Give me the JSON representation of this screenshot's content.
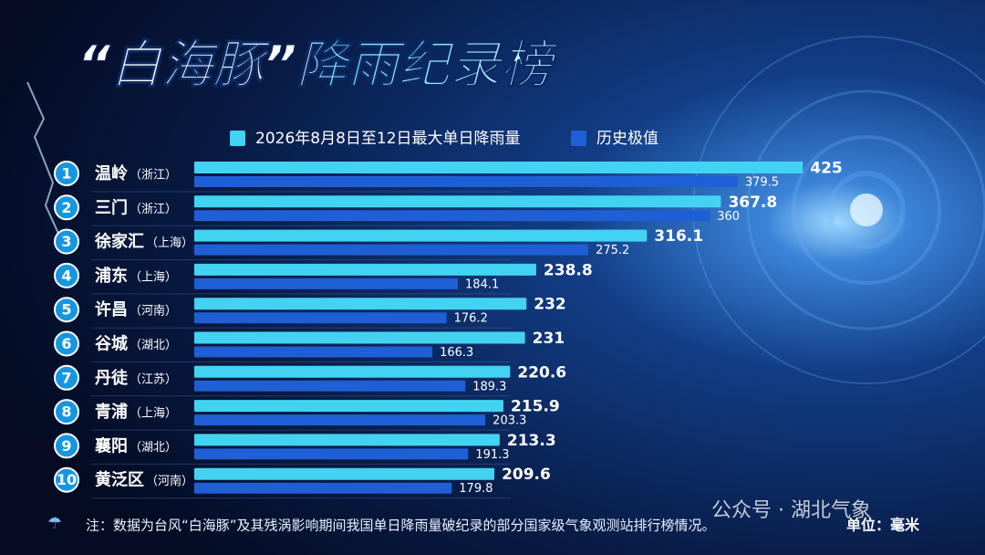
{
  "chart_data": {
    "type": "bar",
    "orientation": "horizontal",
    "title": "“白海豚”降雨纪录榜",
    "ranks": [
      1,
      2,
      3,
      4,
      5,
      6,
      7,
      8,
      9,
      10
    ],
    "categories": [
      "温岭",
      "三门",
      "徐家汇",
      "浦东",
      "许昌",
      "谷城",
      "丹徒",
      "青浦",
      "襄阳",
      "黄泛区"
    ],
    "provinces": [
      "（浙江）",
      "（浙江）",
      "（上海）",
      "（上海）",
      "（河南）",
      "（湖北）",
      "（江苏）",
      "（上海）",
      "（湖北）",
      "（河南）"
    ],
    "series": [
      {
        "name": "2026年8月8日至12日最大单日降雨量",
        "color": "#43d3f2",
        "values": [
          425,
          367.8,
          316.1,
          238.8,
          232,
          231,
          220.6,
          215.9,
          213.3,
          209.6
        ]
      },
      {
        "name": "历史极值",
        "color": "#1f5fd6",
        "values": [
          379.5,
          360,
          275.2,
          184.1,
          176.2,
          166.3,
          189.3,
          203.3,
          191.3,
          179.8
        ]
      }
    ],
    "note": "注：数据为台风“白海豚”及其残涡影响期间我国单日降雨量破纪录的部分国家级气象观测站排行榜情况。",
    "unit": "单位：毫米",
    "watermark": "公众号 · 湖北气象"
  }
}
